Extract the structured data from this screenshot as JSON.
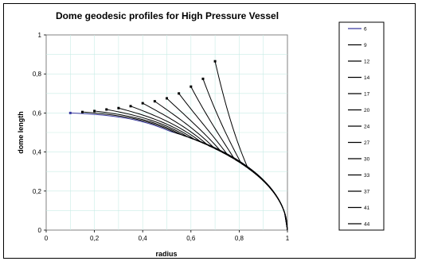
{
  "chart_data": {
    "type": "line",
    "title": "Dome geodesic profiles for High Pressure Vessel",
    "xlabel": "radius",
    "ylabel": "dome length",
    "xlim": [
      0,
      1
    ],
    "ylim": [
      0,
      1
    ],
    "xticks": [
      "0",
      "0,2",
      "0,4",
      "0,6",
      "0,8",
      "1"
    ],
    "yticks": [
      "0",
      "0,2",
      "0,4",
      "0,6",
      "0,8",
      "1"
    ],
    "grid": true,
    "legend_position": "right",
    "series": [
      {
        "name": "6",
        "color": "#3a3aa0",
        "start": [
          0.1,
          0.6
        ],
        "end_y": 0.59
      },
      {
        "name": "9",
        "color": "#000000",
        "start": [
          0.15,
          0.605
        ],
        "end_y": 0.59
      },
      {
        "name": "12",
        "color": "#000000",
        "start": [
          0.2,
          0.61
        ],
        "end_y": 0.589
      },
      {
        "name": "14",
        "color": "#000000",
        "start": [
          0.25,
          0.618
        ],
        "end_y": 0.588
      },
      {
        "name": "17",
        "color": "#000000",
        "start": [
          0.3,
          0.625
        ],
        "end_y": 0.587
      },
      {
        "name": "20",
        "color": "#000000",
        "start": [
          0.35,
          0.635
        ],
        "end_y": 0.586
      },
      {
        "name": "24",
        "color": "#000000",
        "start": [
          0.4,
          0.65
        ],
        "end_y": 0.584
      },
      {
        "name": "27",
        "color": "#000000",
        "start": [
          0.45,
          0.66
        ],
        "end_y": 0.583
      },
      {
        "name": "30",
        "color": "#000000",
        "start": [
          0.5,
          0.675
        ],
        "end_y": 0.582
      },
      {
        "name": "33",
        "color": "#000000",
        "start": [
          0.55,
          0.7
        ],
        "end_y": 0.581
      },
      {
        "name": "37",
        "color": "#000000",
        "start": [
          0.6,
          0.735
        ],
        "end_y": 0.58
      },
      {
        "name": "41",
        "color": "#000000",
        "start": [
          0.65,
          0.775
        ],
        "end_y": 0.579
      },
      {
        "name": "44",
        "color": "#000000",
        "start": [
          0.7,
          0.865
        ],
        "end_y": 0.578
      }
    ]
  }
}
